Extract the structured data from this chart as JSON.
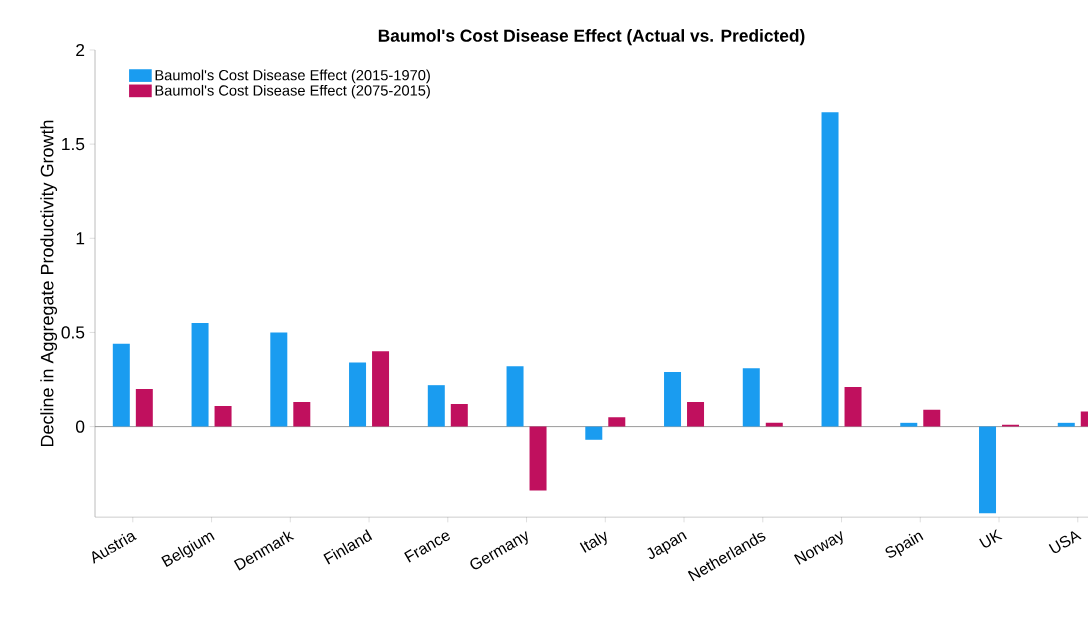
{
  "chart_data": {
    "type": "bar",
    "title": "Baumol's Cost Disease Effect (Actual vs. Predicted)",
    "ylabel": "Decline in Aggregate Productivity Growth",
    "categories": [
      "Austria",
      "Belgium",
      "Denmark",
      "Finland",
      "France",
      "Germany",
      "Italy",
      "Japan",
      "Netherlands",
      "Norway",
      "Spain",
      "UK",
      "USA"
    ],
    "series": [
      {
        "name": "Baumol's Cost Disease Effect (2015-1970)",
        "color": "#1a9cf0",
        "values": [
          0.44,
          0.55,
          0.5,
          0.34,
          0.22,
          0.32,
          -0.07,
          0.29,
          0.31,
          1.67,
          0.02,
          -0.46,
          0.02
        ]
      },
      {
        "name": "Baumol's Cost Disease Effect (2075-2015)",
        "color": "#c0105e",
        "values": [
          0.2,
          0.11,
          0.13,
          0.4,
          0.12,
          -0.34,
          0.05,
          0.13,
          0.02,
          0.21,
          0.09,
          0.01,
          0.08
        ]
      }
    ],
    "ylim": [
      -0.48,
      2
    ],
    "yticks": [
      0,
      0.5,
      1,
      1.5,
      2
    ],
    "ref_lines": [
      {
        "axis": "y",
        "value": 0,
        "color": "#808080"
      }
    ],
    "legend": "top left",
    "grid": false
  }
}
